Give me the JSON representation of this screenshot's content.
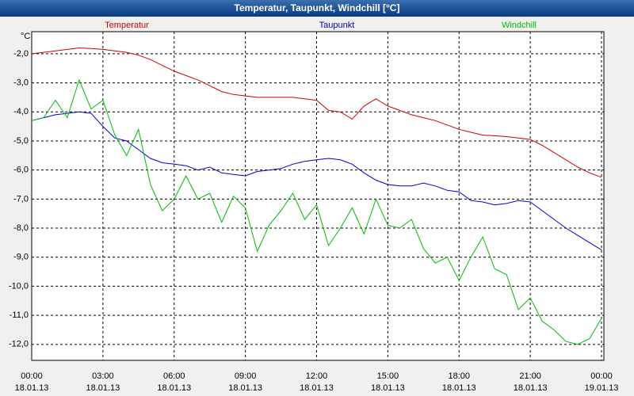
{
  "chart_data": {
    "type": "line",
    "title": "Temperatur, Taupunkt, Windchill [°C]",
    "ylabel": "°C",
    "x": [
      0,
      0.5,
      1,
      1.5,
      2,
      2.5,
      3,
      3.5,
      4,
      4.5,
      5,
      5.5,
      6,
      6.5,
      7,
      7.5,
      8,
      8.5,
      9,
      9.5,
      10,
      10.5,
      11,
      11.5,
      12,
      12.5,
      13,
      13.5,
      14,
      14.5,
      15,
      15.5,
      16,
      16.5,
      17,
      17.5,
      18,
      18.5,
      19,
      19.5,
      20,
      20.5,
      21,
      21.5,
      22,
      22.5,
      23,
      23.5,
      24
    ],
    "series": [
      {
        "name": "Temperatur",
        "color": "#cc0000",
        "values": [
          -2.0,
          -1.95,
          -1.9,
          -1.85,
          -1.8,
          -1.82,
          -1.85,
          -1.9,
          -1.95,
          -2.05,
          -2.2,
          -2.4,
          -2.6,
          -2.75,
          -2.9,
          -3.1,
          -3.3,
          -3.4,
          -3.45,
          -3.5,
          -3.5,
          -3.5,
          -3.5,
          -3.55,
          -3.6,
          -3.95,
          -4.0,
          -4.25,
          -3.8,
          -3.55,
          -3.8,
          -3.95,
          -4.1,
          -4.2,
          -4.3,
          -4.45,
          -4.6,
          -4.7,
          -4.8,
          -4.82,
          -4.85,
          -4.9,
          -4.95,
          -5.15,
          -5.4,
          -5.65,
          -5.9,
          -6.1,
          -6.25
        ]
      },
      {
        "name": "Taupunkt",
        "color": "#0000cc",
        "values": [
          -4.3,
          -4.2,
          -4.1,
          -4.05,
          -4.0,
          -4.05,
          -4.5,
          -4.9,
          -5.0,
          -5.3,
          -5.6,
          -5.75,
          -5.8,
          -5.85,
          -6.0,
          -5.9,
          -6.1,
          -6.15,
          -6.2,
          -6.05,
          -6.0,
          -5.95,
          -5.8,
          -5.7,
          -5.65,
          -5.6,
          -5.65,
          -5.8,
          -6.1,
          -6.35,
          -6.5,
          -6.55,
          -6.55,
          -6.45,
          -6.55,
          -6.7,
          -6.75,
          -7.05,
          -7.1,
          -7.2,
          -7.15,
          -7.05,
          -7.1,
          -7.4,
          -7.7,
          -8.0,
          -8.25,
          -8.5,
          -8.75
        ]
      },
      {
        "name": "Windchill",
        "color": "#00bb00",
        "values": [
          -4.3,
          -4.2,
          -3.6,
          -4.2,
          -2.9,
          -3.9,
          -3.6,
          -4.8,
          -5.5,
          -4.6,
          -6.5,
          -7.4,
          -7.0,
          -6.2,
          -7.0,
          -6.8,
          -7.8,
          -6.9,
          -7.3,
          -8.8,
          -7.9,
          -7.4,
          -6.8,
          -7.7,
          -7.2,
          -8.6,
          -8.0,
          -7.3,
          -8.2,
          -7.0,
          -7.9,
          -8.0,
          -7.7,
          -8.7,
          -9.2,
          -9.0,
          -9.8,
          -9.0,
          -8.3,
          -9.4,
          -9.6,
          -10.8,
          -10.4,
          -11.2,
          -11.5,
          -11.9,
          -12.0,
          -11.8,
          -11.1
        ]
      }
    ],
    "xlim": [
      0,
      24.1
    ],
    "ylim": [
      -12.55,
      -1.24
    ],
    "xticks": [
      {
        "value": 0,
        "label": "00:00"
      },
      {
        "value": 3,
        "label": "03:00"
      },
      {
        "value": 6,
        "label": "06:00"
      },
      {
        "value": 9,
        "label": "09:00"
      },
      {
        "value": 12,
        "label": "12:00"
      },
      {
        "value": 15,
        "label": "15:00"
      },
      {
        "value": 18,
        "label": "18:00"
      },
      {
        "value": 21,
        "label": "21:00"
      },
      {
        "value": 24,
        "label": "00:00"
      }
    ],
    "xtick_dates": [
      "18.01.13",
      "18.01.13",
      "18.01.13",
      "18.01.13",
      "18.01.13",
      "18.01.13",
      "18.01.13",
      "18.01.13",
      "19.01.13"
    ],
    "yticks": [
      {
        "value": -2,
        "label": "-2,0"
      },
      {
        "value": -3,
        "label": "-3,0"
      },
      {
        "value": -4,
        "label": "-4,0"
      },
      {
        "value": -5,
        "label": "-5,0"
      },
      {
        "value": -6,
        "label": "-6,0"
      },
      {
        "value": -7,
        "label": "-7,0"
      },
      {
        "value": -8,
        "label": "-8,0"
      },
      {
        "value": -9,
        "label": "-9,0"
      },
      {
        "value": -10,
        "label": "-10,0"
      },
      {
        "value": -11,
        "label": "-11,0"
      },
      {
        "value": -12,
        "label": "-12,0"
      }
    ],
    "grid": true
  }
}
